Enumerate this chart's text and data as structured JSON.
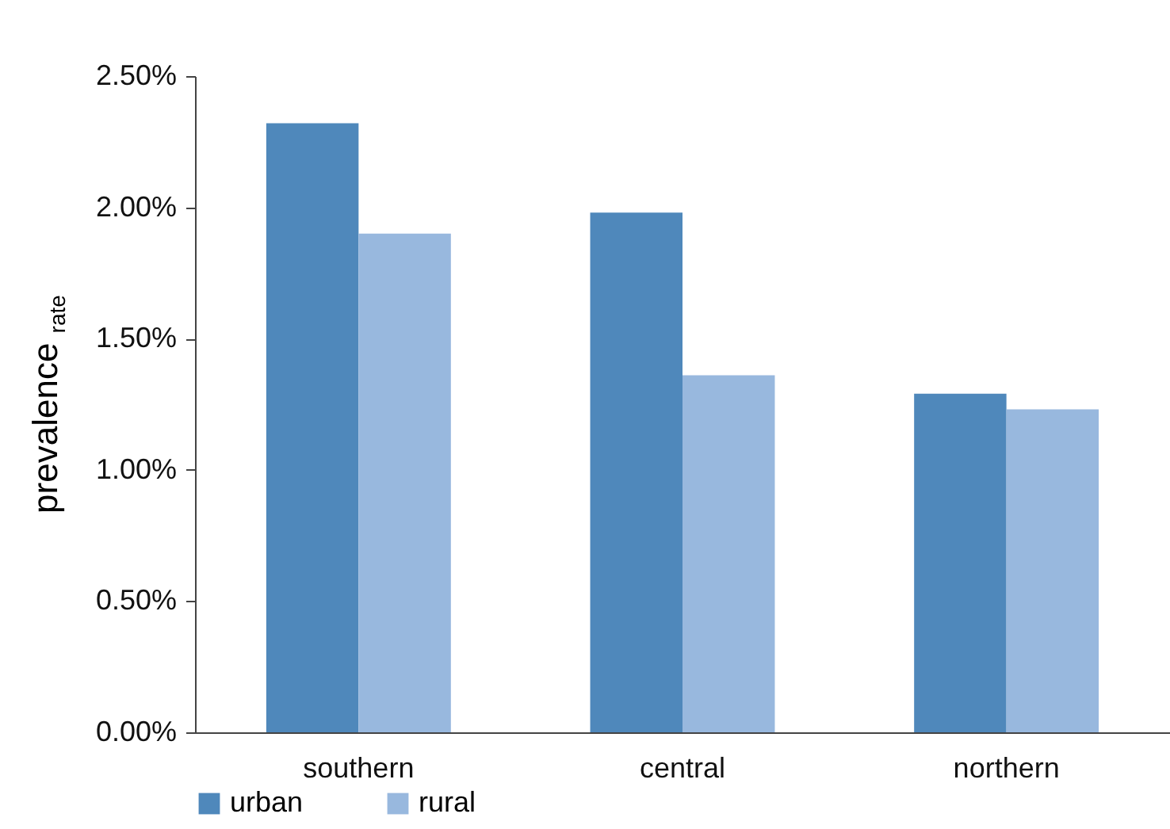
{
  "chart_data": {
    "type": "bar",
    "ylabel": "prevalence $_{rate}$",
    "categories": [
      "southern",
      "central",
      "northern"
    ],
    "series": [
      {
        "name": "urban",
        "color": "#4f88bb",
        "values": [
          2.32,
          1.98,
          1.29
        ]
      },
      {
        "name": "rural",
        "color": "#98b8de",
        "values": [
          1.9,
          1.36,
          1.23
        ]
      }
    ],
    "ylim": [
      0,
      2.5
    ],
    "yticks": [
      {
        "value": 0,
        "label": "0.00%"
      },
      {
        "value": 0.5,
        "label": "0.50%"
      },
      {
        "value": 1,
        "label": "1.00%"
      },
      {
        "value": 1.5,
        "label": "1.50%"
      },
      {
        "value": 2,
        "label": "2.00%"
      },
      {
        "value": 2.5,
        "label": "2.50%"
      }
    ],
    "grid": false,
    "legend": "bottom"
  }
}
